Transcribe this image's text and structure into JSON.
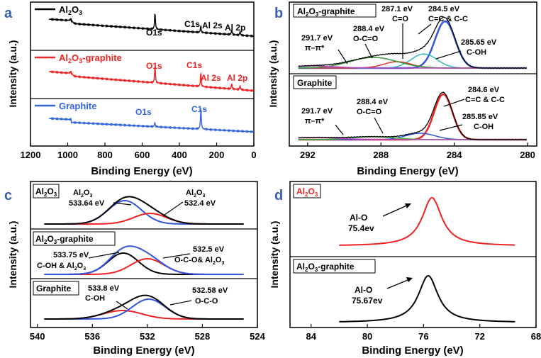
{
  "chart_data": [
    {
      "id": "a",
      "type": "line",
      "panel_label": "a",
      "xlabel": "Binding Energy (eV)",
      "ylabel": "Intensity (a.u.)",
      "xlim": [
        1200,
        0
      ],
      "x_ticks": [
        "1200",
        "1000",
        "800",
        "600",
        "400",
        "200",
        "0"
      ],
      "subplots": [
        {
          "legend": "Al2O3",
          "legend_main": "Al",
          "legend_sub1": "2",
          "legend_mid": "O",
          "legend_sub2": "3",
          "legend_tail": "",
          "color": "#000000",
          "annotations": [
            "O1s",
            "C1s",
            "Al 2s",
            "Al 2p"
          ],
          "peaks": [
            {
              "name": "O1s",
              "x": 531
            },
            {
              "name": "C1s",
              "x": 285
            },
            {
              "name": "Al 2s",
              "x": 119
            },
            {
              "name": "Al 2p",
              "x": 74
            }
          ]
        },
        {
          "legend": "Al2O3-graphite",
          "legend_main": "Al",
          "legend_sub1": "2",
          "legend_mid": "O",
          "legend_sub2": "3",
          "legend_tail": "-graphite",
          "color": "#ee2222",
          "annotations": [
            "O1s",
            "C1s",
            "Al 2s",
            "Al 2p"
          ],
          "peaks": [
            {
              "name": "O1s",
              "x": 531
            },
            {
              "name": "C1s",
              "x": 285
            },
            {
              "name": "Al 2s",
              "x": 119
            },
            {
              "name": "Al 2p",
              "x": 74
            }
          ]
        },
        {
          "legend": "Graphite",
          "color": "#3366dd",
          "annotations": [
            "O1s",
            "C1s"
          ],
          "peaks": [
            {
              "name": "O1s",
              "x": 532
            },
            {
              "name": "C1s",
              "x": 284.6
            }
          ]
        }
      ]
    },
    {
      "id": "b",
      "type": "line",
      "panel_label": "b",
      "xlabel": "Binding Energy (eV)",
      "ylabel": "Intensity (a.u.)",
      "xlim": [
        293,
        279.5
      ],
      "x_ticks": [
        "292",
        "288",
        "284",
        "280"
      ],
      "subplots": [
        {
          "title": "Al2O3-graphite",
          "title_main": "Al",
          "title_sub1": "2",
          "title_mid": "O",
          "title_sub2": "3",
          "title_tail": "-graphite",
          "components": [
            {
              "label": "284.5 eV",
              "sublabel": "C=C & C-C",
              "center": 284.5,
              "color": "#3355dd"
            },
            {
              "label": "285.65 eV",
              "sublabel": "C-OH",
              "center": 285.65,
              "color": "#33bbbb"
            },
            {
              "label": "287.1 eV",
              "sublabel": "C=O",
              "center": 287.1,
              "color": "#dd3333"
            },
            {
              "label": "288.4 eV",
              "sublabel": "O-C=O",
              "center": 288.4,
              "color": "#339933"
            },
            {
              "label": "291.7 eV",
              "sublabel": "π–π*",
              "center": 291.7,
              "color": "#bb44bb"
            }
          ]
        },
        {
          "title": "Graphite",
          "components": [
            {
              "label": "284.6 eV",
              "sublabel": "C=C & C-C",
              "center": 284.6,
              "color": "#ee2222"
            },
            {
              "label": "285.85 eV",
              "sublabel": "C-OH",
              "center": 285.85,
              "color": "#3355dd"
            },
            {
              "label": "288.4 eV",
              "sublabel": "O-C=O",
              "center": 288.4,
              "color": "#33bb33"
            },
            {
              "label": "291.7 eV",
              "sublabel": "π–π*",
              "center": 291.7,
              "color": "#bb44bb"
            }
          ]
        }
      ]
    },
    {
      "id": "c",
      "type": "line",
      "panel_label": "c",
      "xlabel": "Binding Energy (eV)",
      "ylabel": "Intensity (a.u.)",
      "xlim": [
        540.5,
        524
      ],
      "x_ticks": [
        "540",
        "536",
        "532",
        "528",
        "524"
      ],
      "subplots": [
        {
          "title": "Al2O3",
          "title_main": "Al",
          "title_sub1": "2",
          "title_mid": "O",
          "title_sub2": "3",
          "title_tail": "",
          "components": [
            {
              "label": "Al2O3",
              "sublabel": "533.64 eV",
              "center": 533.64,
              "color": "#3355dd"
            },
            {
              "label": "Al2O3",
              "sublabel": "532.4 eV",
              "center": 532.4,
              "color": "#ee2222"
            }
          ]
        },
        {
          "title": "Al2O3-graphite",
          "title_main": "Al",
          "title_sub1": "2",
          "title_mid": "O",
          "title_sub2": "3",
          "title_tail": "-graphite",
          "components": [
            {
              "label": "533.75 eV",
              "sublabel": "C-OH & Al2O3",
              "center": 533.75,
              "color": "#000000"
            },
            {
              "label": "532.5 eV",
              "sublabel": "O-C-O& Al2O3",
              "center": 532.5,
              "color": "#ee2222"
            }
          ]
        },
        {
          "title": "Graphite",
          "components": [
            {
              "label": "533.8 eV",
              "sublabel": "C-OH",
              "center": 533.8,
              "color": "#ee2222"
            },
            {
              "label": "532.58 eV",
              "sublabel": "O-C-O",
              "center": 532.58,
              "color": "#3355dd"
            }
          ]
        }
      ]
    },
    {
      "id": "d",
      "type": "line",
      "panel_label": "d",
      "xlabel": "Binding Energy (eV)",
      "ylabel": "Intensity (a.u.)",
      "xlim": [
        85.5,
        68
      ],
      "x_ticks": [
        "84",
        "80",
        "76",
        "72",
        "68"
      ],
      "subplots": [
        {
          "title": "Al2O3",
          "title_main": "Al",
          "title_sub1": "2",
          "title_mid": "O",
          "title_sub2": "3",
          "title_tail": "",
          "peak_label": "Al-O",
          "peak_value": "75.4ev",
          "center": 75.4,
          "color": "#ee2222"
        },
        {
          "title": "Al2O3-graphite",
          "title_main": "Al",
          "title_sub1": "2",
          "title_mid": "O",
          "title_sub2": "3",
          "title_tail": "-graphite",
          "peak_label": "Al-O",
          "peak_value": "75.67ev",
          "center": 75.67,
          "color": "#000000"
        }
      ]
    }
  ]
}
